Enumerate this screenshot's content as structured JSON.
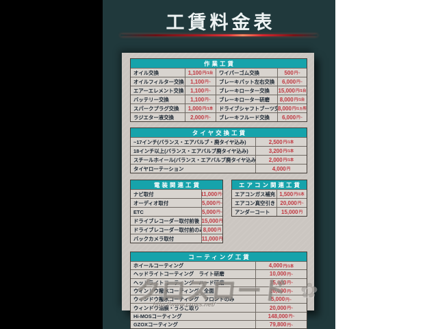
{
  "title": "工賃料金表",
  "watermark": {
    "name": "クロスロード",
    "url": "http://www.cross.net/"
  },
  "tables": {
    "work": {
      "title": "作業工賃",
      "rows": [
        [
          {
            "item": "オイル交換"
          },
          {
            "amount": "1,100",
            "unit": "円/1台"
          },
          {
            "item": "ワイパーゴム交換"
          },
          {
            "amount": "500",
            "unit": "円~"
          }
        ],
        [
          {
            "item": "オイルフィルター交換"
          },
          {
            "amount": "1,100",
            "unit": "円~"
          },
          {
            "item": "ブレーキパット左右交換"
          },
          {
            "amount": "6,000",
            "unit": "円~"
          }
        ],
        [
          {
            "item": "エアーエレメント交換"
          },
          {
            "amount": "1,100",
            "unit": "円~"
          },
          {
            "item": "ブレーキローター交換"
          },
          {
            "amount": "15,000",
            "unit": "円/1台"
          }
        ],
        [
          {
            "item": "バッテリー交換"
          },
          {
            "amount": "1,100",
            "unit": "円~"
          },
          {
            "item": "ブレーキローター研磨"
          },
          {
            "amount": "8,000",
            "unit": "円/1台"
          }
        ],
        [
          {
            "item": "スパークプラグ交換"
          },
          {
            "amount": "1,000",
            "unit": "円/1本"
          },
          {
            "item": "ドライブシャフトブーツ交換"
          },
          {
            "amount": "8,000",
            "unit": "円/1ヵ所"
          }
        ],
        [
          {
            "item": "ラジエター液交換"
          },
          {
            "amount": "2,000",
            "unit": "円~"
          },
          {
            "item": "ブレーキフルード交換"
          },
          {
            "amount": "6,000",
            "unit": "円~"
          }
        ]
      ]
    },
    "tire": {
      "title": "タイヤ交換工賃",
      "rows": [
        [
          {
            "item": "~17インチ(バランス・エアバルブ・廃タイヤ込み)"
          },
          {
            "amount": "2,500",
            "unit": "円/1本"
          }
        ],
        [
          {
            "item": "18インチ以上(バランス・エアバルブ廃タイヤ込み)"
          },
          {
            "amount": "3,200",
            "unit": "円/1本"
          }
        ],
        [
          {
            "item": "スチールホイール(バランス・エアバルブ廃タイヤ込み)"
          },
          {
            "amount": "2,000",
            "unit": "円/1本"
          }
        ],
        [
          {
            "item": "タイヤローテーション"
          },
          {
            "amount": "4,000",
            "unit": "円"
          }
        ]
      ]
    },
    "electrical": {
      "title": "電装関連工賃",
      "rows": [
        [
          {
            "item": "ナビ取付"
          },
          {
            "amount": "11,000",
            "unit": "円~"
          }
        ],
        [
          {
            "item": "オーディオ取付"
          },
          {
            "amount": "5,000",
            "unit": "円~"
          }
        ],
        [
          {
            "item": "ETC"
          },
          {
            "amount": "5,000",
            "unit": "円~"
          }
        ],
        [
          {
            "item": "ドライブレコーダー取付前後"
          },
          {
            "amount": "15,000",
            "unit": "円"
          }
        ],
        [
          {
            "item": "ドライブレコーダー取付前のみ"
          },
          {
            "amount": "8,000",
            "unit": "円"
          }
        ],
        [
          {
            "item": "バックカメラ取付"
          },
          {
            "amount": "11,000",
            "unit": "円"
          }
        ]
      ]
    },
    "aircon": {
      "title": "エアコン関連工賃",
      "rows": [
        [
          {
            "item": "エアコンガス補充"
          },
          {
            "amount": "1,500",
            "unit": "円/1本"
          }
        ],
        [
          {
            "item": "エアコン真空引き"
          },
          {
            "amount": "20,000",
            "unit": "円~"
          }
        ],
        [
          {
            "item": "アンダーコート"
          },
          {
            "amount": "15,000",
            "unit": "円"
          }
        ]
      ]
    },
    "coating": {
      "title": "コーティング工賃",
      "rows": [
        [
          {
            "item": "ホイールコーティング"
          },
          {
            "amount": "4,000",
            "unit": "円/1本"
          }
        ],
        [
          {
            "item": "ヘッドライトコーティング　ライト研磨"
          },
          {
            "amount": "10,000",
            "unit": "円~"
          }
        ],
        [
          {
            "item": "ヘッドライトコーティング　ハード研磨"
          },
          {
            "amount": "15,000",
            "unit": "円~"
          }
        ],
        [
          {
            "item": "ウィンドウ撥水コーティング　全面"
          },
          {
            "amount": "20,000",
            "unit": "円~"
          }
        ],
        [
          {
            "item": "ウィンドウ撥水コーティング　フロントのみ"
          },
          {
            "amount": "5,000",
            "unit": "円~"
          }
        ],
        [
          {
            "item": "ウィンドウ油膜・うろこ取り"
          },
          {
            "amount": "20,000",
            "unit": "円~"
          }
        ],
        [
          {
            "item": "Hi-MOSコーティング"
          },
          {
            "amount": "148,000",
            "unit": "円~"
          }
        ],
        [
          {
            "item": "GZOXコーティング"
          },
          {
            "amount": "79,800",
            "unit": "円~"
          }
        ]
      ]
    }
  }
}
